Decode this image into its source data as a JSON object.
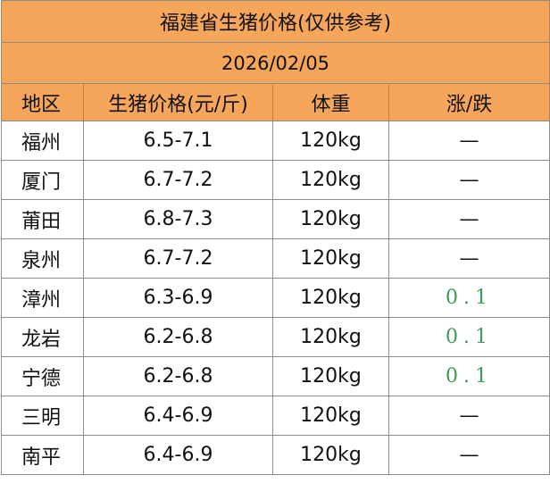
{
  "title": "福建省生猪价格(仅供参考)",
  "date": "2026/02/05",
  "table": {
    "headers": [
      "地区",
      "生猪价格(元/斤)",
      "体重",
      "涨/跌"
    ],
    "rows": [
      [
        "福州",
        "6.5-7.1",
        "120kg",
        "—"
      ],
      [
        "厦门",
        "6.7-7.2",
        "120kg",
        "—"
      ],
      [
        "莆田",
        "6.8-7.3",
        "120kg",
        "—"
      ],
      [
        "泉州",
        "6.7-7.2",
        "120kg",
        "—"
      ],
      [
        "漳州",
        "6.3-6.9",
        "120kg",
        "0.1"
      ],
      [
        "龙岩",
        "6.2-6.8",
        "120kg",
        "0.1"
      ],
      [
        "宁德",
        "6.2-6.8",
        "120kg",
        "0.1"
      ],
      [
        "三明",
        "6.4-6.9",
        "120kg",
        "—"
      ],
      [
        "南平",
        "6.4-6.9",
        "120kg",
        "—"
      ]
    ]
  }
}
